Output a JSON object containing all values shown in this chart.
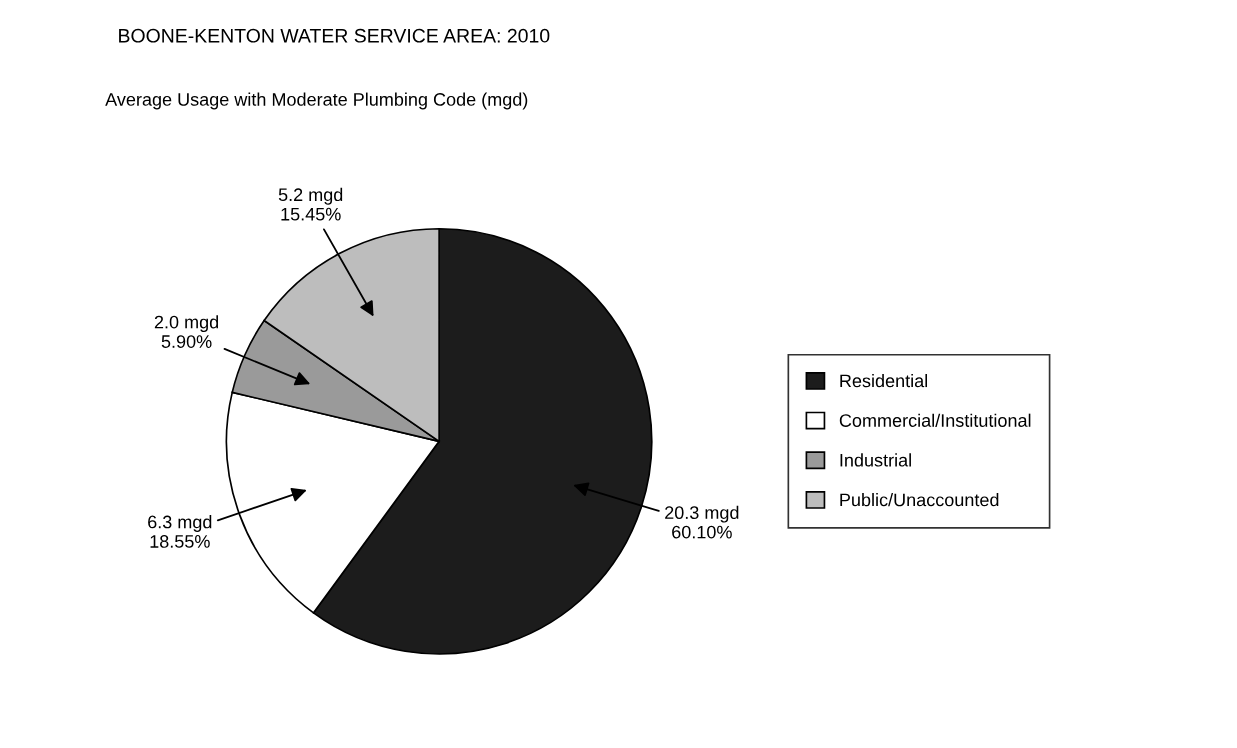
{
  "chart_data": {
    "type": "pie",
    "title": "BOONE-KENTON WATER SERVICE AREA: 2010",
    "subtitle": "Average Usage with Moderate Plumbing Code (mgd)",
    "categories": [
      "Residential",
      "Commercial/Institutional",
      "Industrial",
      "Public/Unaccounted"
    ],
    "values": [
      20.3,
      6.3,
      2.0,
      5.2
    ],
    "value_labels": [
      "20.3 mgd\n60.10%",
      "6.3 mgd\n18.55%",
      "2.0 mgd\n5.90%",
      "5.2 mgd\n15.45%"
    ],
    "colors": [
      "#1c1c1c",
      "#ffffff",
      "#9a9a9a",
      "#bdbdbd"
    ],
    "legend": "right"
  }
}
